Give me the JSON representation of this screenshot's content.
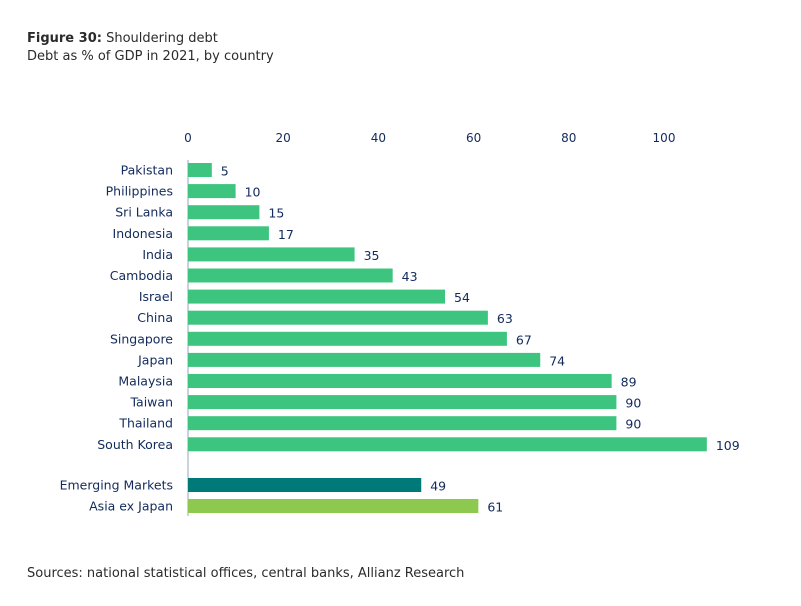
{
  "header": {
    "figure_label": "Figure 30:",
    "title": " Shouldering debt",
    "subtitle": "Debt as % of GDP in 2021, by country"
  },
  "source": "Sources: national statistical offices, central banks, Allianz Research",
  "colors": {
    "country": "#3dc47e",
    "emerging": "#007a78",
    "asia_ex_japan": "#8cc94e",
    "text": "#122b5c"
  },
  "chart_data": {
    "type": "bar",
    "orientation": "horizontal",
    "xlim": [
      0,
      115
    ],
    "xticks": [
      0,
      20,
      40,
      60,
      80,
      100
    ],
    "xaxis_position": "top",
    "grid": false,
    "categories": [
      "Pakistan",
      "Philippines",
      "Sri Lanka",
      "Indonesia",
      "India",
      "Cambodia",
      "Israel",
      "China",
      "Singapore",
      "Japan",
      "Malaysia",
      "Taiwan",
      "Thailand",
      "South Korea",
      "Emerging Markets",
      "Asia ex Japan"
    ],
    "values": [
      5,
      10,
      15,
      17,
      35,
      43,
      54,
      63,
      67,
      74,
      89,
      90,
      90,
      109,
      49,
      61
    ],
    "bar_color_keys": [
      "country",
      "country",
      "country",
      "country",
      "country",
      "country",
      "country",
      "country",
      "country",
      "country",
      "country",
      "country",
      "country",
      "country",
      "emerging",
      "asia_ex_japan"
    ]
  }
}
